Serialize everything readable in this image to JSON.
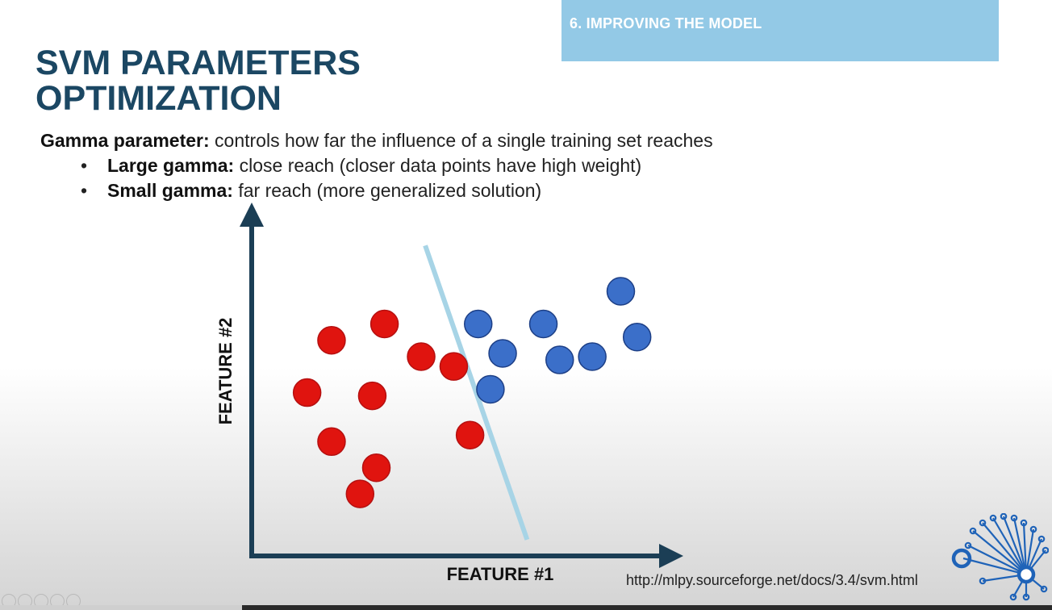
{
  "section": {
    "label": "6. IMPROVING THE MODEL"
  },
  "title": {
    "line1": "SVM PARAMETERS",
    "line2": "OPTIMIZATION"
  },
  "intro": {
    "term": "Gamma parameter:",
    "text": " controls how far the influence of a single training set reaches"
  },
  "bullets": [
    {
      "term": "Large gamma:",
      "text": " close reach (closer data points have high weight)"
    },
    {
      "term": "Small gamma:",
      "text": " far reach (more generalized solution)"
    }
  ],
  "source_url": "http://mlpy.sourceforge.net/docs/3.4/svm.html",
  "video": {
    "progress": 0.23
  },
  "colors": {
    "title": "#1b4763",
    "banner": "#93c9e6",
    "class_red": "#e0140f",
    "class_blue": "#3b6fc9",
    "decision_line": "#a7d4e6",
    "axes": "#1b3e55"
  },
  "chart_data": {
    "type": "scatter",
    "title": "",
    "xlabel": "FEATURE #1",
    "ylabel": "FEATURE #2",
    "xlim": [
      0,
      100
    ],
    "ylim": [
      0,
      100
    ],
    "grid": false,
    "legend": "none",
    "series": [
      {
        "color": "#e0140f",
        "points": [
          [
            13,
            49
          ],
          [
            19,
            65
          ],
          [
            19,
            34
          ],
          [
            26,
            18
          ],
          [
            29,
            48
          ],
          [
            30,
            26
          ],
          [
            32,
            70
          ],
          [
            41,
            60
          ],
          [
            49,
            57
          ],
          [
            53,
            36
          ]
        ]
      },
      {
        "color": "#3b6fc9",
        "points": [
          [
            55,
            70
          ],
          [
            58,
            50
          ],
          [
            61,
            61
          ],
          [
            71,
            70
          ],
          [
            75,
            59
          ],
          [
            83,
            60
          ],
          [
            90,
            80
          ],
          [
            94,
            66
          ]
        ]
      }
    ],
    "decision_boundary": {
      "color": "#a7d4e6",
      "from": [
        42,
        94
      ],
      "to": [
        67,
        4
      ]
    }
  }
}
